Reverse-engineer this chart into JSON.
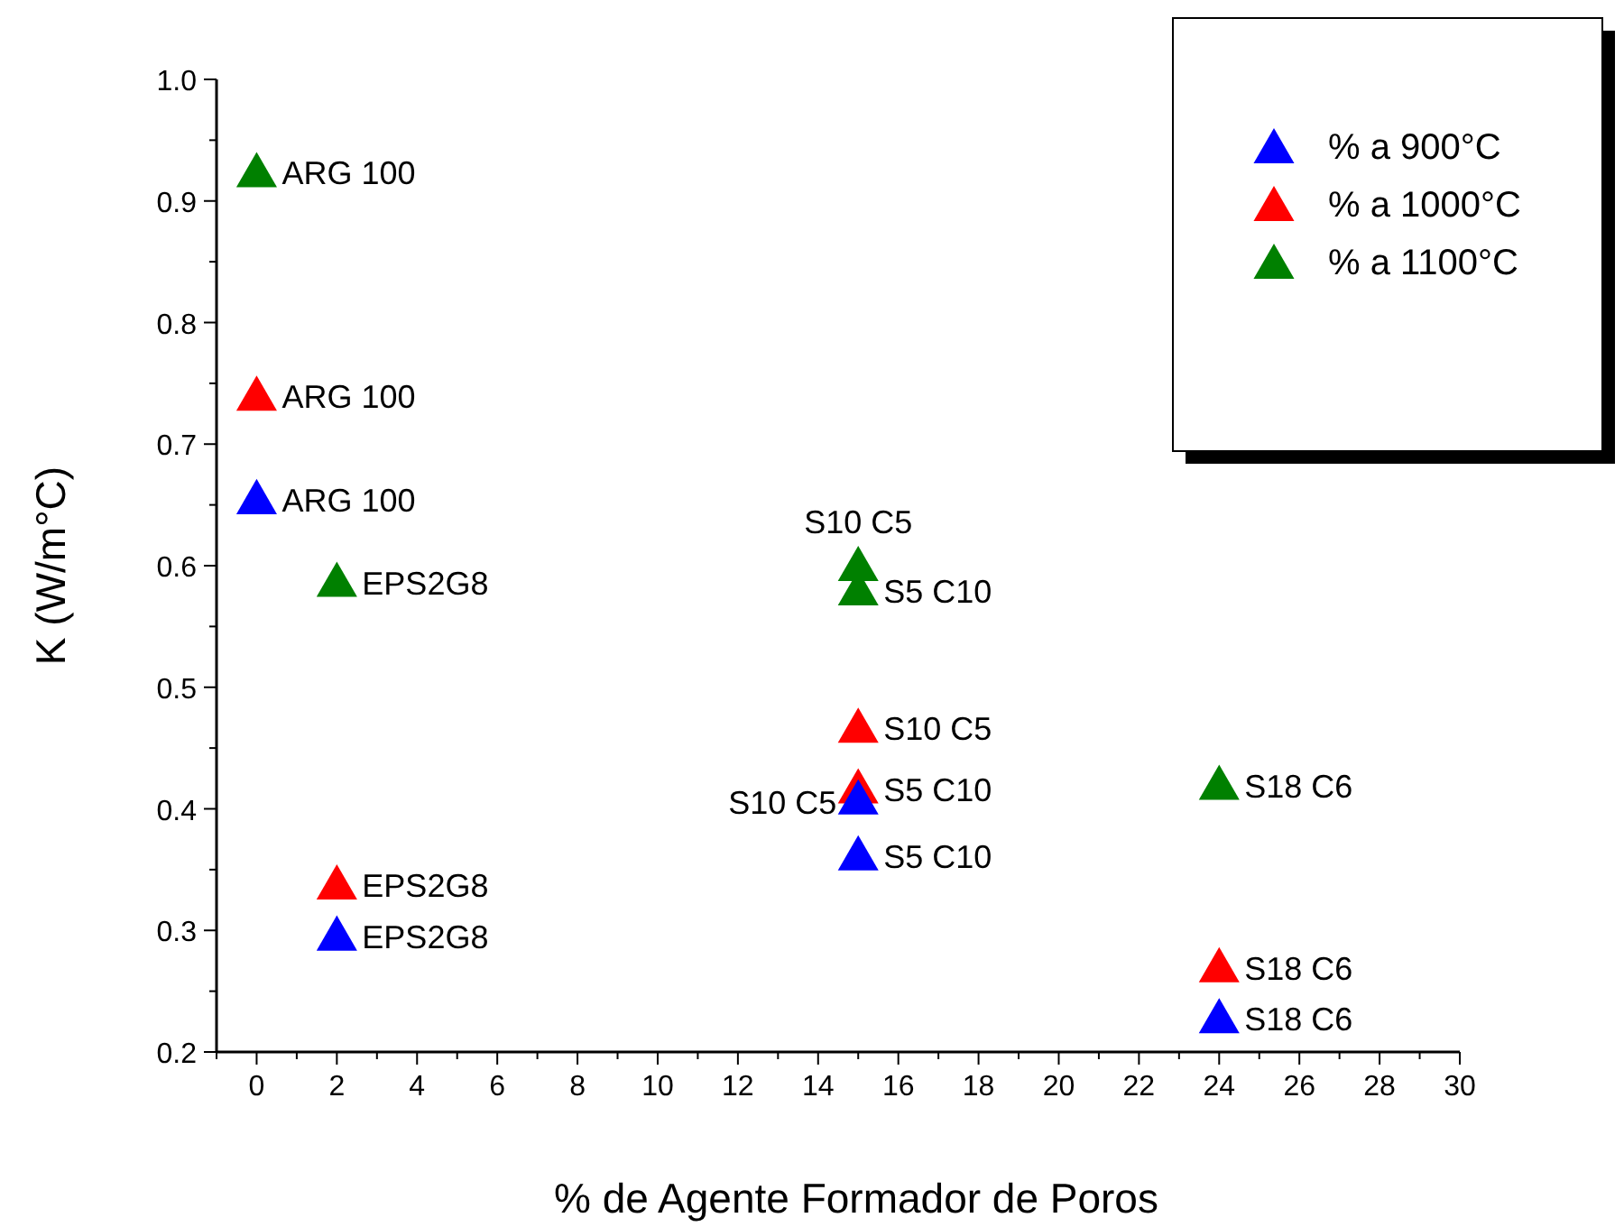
{
  "chart_data": {
    "type": "scatter",
    "xlabel": "% de Agente Formador de Poros",
    "ylabel": "K (W/m°C)",
    "xlim": [
      -1,
      30
    ],
    "ylim": [
      0.2,
      1.0
    ],
    "xticks": [
      {
        "value": -1,
        "label": null
      },
      0,
      {
        "value": 1,
        "label": null
      },
      2,
      {
        "value": 3,
        "label": null
      },
      4,
      {
        "value": 5,
        "label": null
      },
      6,
      {
        "value": 7,
        "label": null
      },
      8,
      {
        "value": 9,
        "label": null
      },
      10,
      {
        "value": 11,
        "label": null
      },
      12,
      {
        "value": 13,
        "label": null
      },
      14,
      {
        "value": 15,
        "label": null
      },
      16,
      {
        "value": 17,
        "label": null
      },
      18,
      {
        "value": 19,
        "label": null
      },
      20,
      {
        "value": 21,
        "label": null
      },
      22,
      {
        "value": 23,
        "label": null
      },
      24,
      {
        "value": 25,
        "label": null
      },
      26,
      {
        "value": 27,
        "label": null
      },
      28,
      {
        "value": 29,
        "label": null
      },
      30
    ],
    "yticks": [
      {
        "value": 0.2,
        "label": "0.2"
      },
      {
        "value": 0.25,
        "label": null
      },
      {
        "value": 0.3,
        "label": "0.3"
      },
      {
        "value": 0.35,
        "label": null
      },
      {
        "value": 0.4,
        "label": "0.4"
      },
      {
        "value": 0.45,
        "label": null
      },
      {
        "value": 0.5,
        "label": "0.5"
      },
      {
        "value": 0.55,
        "label": null
      },
      {
        "value": 0.6,
        "label": "0.6"
      },
      {
        "value": 0.65,
        "label": null
      },
      {
        "value": 0.7,
        "label": "0.7"
      },
      {
        "value": 0.75,
        "label": null
      },
      {
        "value": 0.8,
        "label": "0.8"
      },
      {
        "value": 0.85,
        "label": null
      },
      {
        "value": 0.9,
        "label": "0.9"
      },
      {
        "value": 0.95,
        "label": null
      },
      {
        "value": 1.0,
        "label": "1.0"
      }
    ],
    "marker": "triangle",
    "grid": false,
    "legend": "top right",
    "series": [
      {
        "name": "% a 900°C",
        "color": "#0000ff",
        "x": [
          0,
          2,
          15,
          15,
          24
        ],
        "values": [
          0.655,
          0.296,
          0.408,
          0.362,
          0.228
        ]
      },
      {
        "name": "% a 1000°C",
        "color": "#ff0000",
        "x": [
          0,
          2,
          15,
          15,
          24
        ],
        "values": [
          0.74,
          0.338,
          0.467,
          0.417,
          0.27
        ]
      },
      {
        "name": "% a 1100°C",
        "color": "#008000",
        "x": [
          0,
          2,
          15,
          15,
          24
        ],
        "values": [
          0.924,
          0.587,
          0.6,
          0.58,
          0.42
        ]
      }
    ],
    "annotations": [
      {
        "text": "ARG 100",
        "x": 0,
        "y": 0.924
      },
      {
        "text": "ARG 100",
        "x": 0,
        "y": 0.74
      },
      {
        "text": "ARG 100",
        "x": 0,
        "y": 0.655
      },
      {
        "text": "EPS2G8",
        "x": 2,
        "y": 0.587
      },
      {
        "text": "EPS2G8",
        "x": 2,
        "y": 0.338
      },
      {
        "text": "EPS2G8",
        "x": 2,
        "y": 0.296
      },
      {
        "text": "S10 C5",
        "x": 15,
        "y": 0.6
      },
      {
        "text": "S5 C10",
        "x": 15,
        "y": 0.58
      },
      {
        "text": "S10 C5",
        "x": 15,
        "y": 0.467
      },
      {
        "text": "S5 C10",
        "x": 15,
        "y": 0.417
      },
      {
        "text": "S10 C5",
        "x": 15,
        "y": 0.408
      },
      {
        "text": "S5 C10",
        "x": 15,
        "y": 0.362
      },
      {
        "text": "S18 C6",
        "x": 24,
        "y": 0.42
      },
      {
        "text": "S18 C6",
        "x": 24,
        "y": 0.27
      },
      {
        "text": "S18 C6",
        "x": 24,
        "y": 0.228
      }
    ]
  }
}
